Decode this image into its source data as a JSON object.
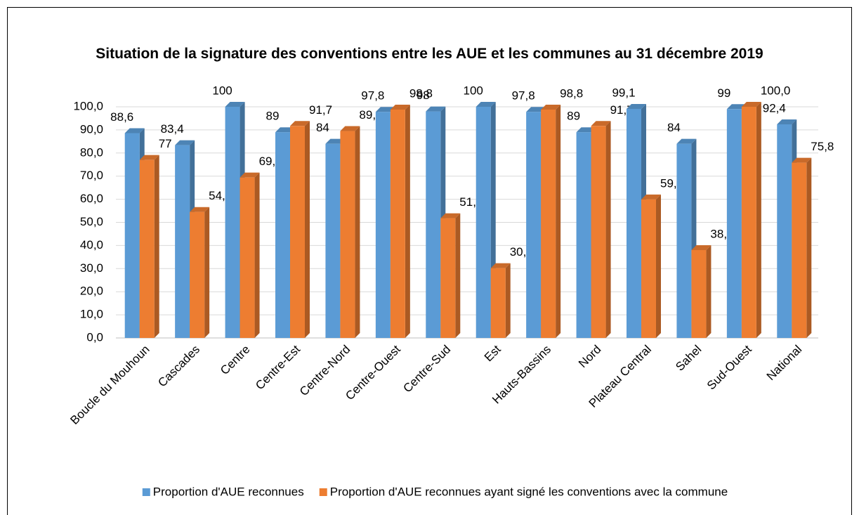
{
  "chart_data": {
    "type": "bar3d",
    "title": "Situation de la signature des conventions entre les AUE et les communes au 31 décembre 2019",
    "categories": [
      "Boucle du Mouhoun",
      "Cascades",
      "Centre",
      "Centre-Est",
      "Centre-Nord",
      "Centre-Ouest",
      "Centre-Sud",
      "Est",
      "Hauts-Bassins",
      "Nord",
      "Plateau Central",
      "Sahel",
      "Sud-Ouest",
      "National"
    ],
    "series": [
      {
        "name": "Proportion d'AUE reconnues",
        "color": "#5b9bd5",
        "values": [
          88.6,
          83.4,
          100,
          89,
          84,
          97.8,
          98,
          100,
          97.8,
          89,
          99.1,
          84,
          99,
          92.4
        ],
        "value_labels": [
          "88,6",
          "83,4",
          "100",
          "89",
          "84",
          "97,8",
          "98",
          "100",
          "97,8",
          "89",
          "99,1",
          "84",
          "99",
          "92,4"
        ]
      },
      {
        "name": "Proportion d'AUE reconnues ayant signé les conventions avec la commune",
        "color": "#ed7d31",
        "values": [
          77,
          54.5,
          69.4,
          91.7,
          89.5,
          98.8,
          51.8,
          30.2,
          98.8,
          91.7,
          59.9,
          38.0,
          100.0,
          75.8
        ],
        "value_labels": [
          "77",
          "54,5",
          "69,4",
          "91,7",
          "89,5",
          "98,8",
          "51,8",
          "30,2",
          "98,8",
          "91,7",
          "59,9",
          "38,0",
          "100,0",
          "75,8"
        ]
      }
    ],
    "ylim": [
      0,
      100
    ],
    "yticks": [
      {
        "value": 0,
        "label": "0,0"
      },
      {
        "value": 10,
        "label": "10,0"
      },
      {
        "value": 20,
        "label": "20,0"
      },
      {
        "value": 30,
        "label": "30,0"
      },
      {
        "value": 40,
        "label": "40,0"
      },
      {
        "value": 50,
        "label": "50,0"
      },
      {
        "value": 60,
        "label": "60,0"
      },
      {
        "value": 70,
        "label": "70,0"
      },
      {
        "value": 80,
        "label": "80,0"
      },
      {
        "value": 90,
        "label": "90,0"
      },
      {
        "value": 100,
        "label": "100,0"
      }
    ],
    "grid": true,
    "legend": "bottom"
  }
}
